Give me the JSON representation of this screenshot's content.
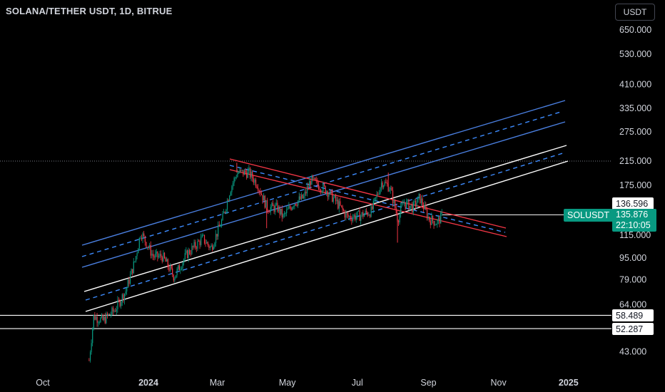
{
  "header": {
    "title": "SOLANA/TETHER USDT, 1D, BITRUE",
    "currency_button": "USDT"
  },
  "colors": {
    "background": "#000000",
    "candle_up": "#089981",
    "candle_down": "#f23645",
    "channel_blue": "#4a7fe0",
    "channel_blue_dashed": "#3d8bfd",
    "channel_white": "#ffffff",
    "channel_red": "#f23645",
    "current_price": "#089981"
  },
  "price_tags": {
    "upper_level": "136.596",
    "support_1": "58.489",
    "support_2": "52.287",
    "symbol": "SOLUSDT",
    "current_price": "135.876",
    "countdown": "22:10:05"
  },
  "chart_data": {
    "type": "candlestick",
    "title": "SOLANA/TETHER USDT, 1D, BITRUE",
    "y_scale": "log",
    "y_ticks": [
      "650.000",
      "530.000",
      "410.000",
      "335.000",
      "275.000",
      "215.000",
      "175.000",
      "115.000",
      "95.000",
      "79.000",
      "64.000",
      "43.000"
    ],
    "x_ticks": [
      {
        "label": "Oct",
        "date": "2023-10-01",
        "bold": false
      },
      {
        "label": "2024",
        "date": "2024-01-01",
        "bold": true
      },
      {
        "label": "Mar",
        "date": "2024-03-01",
        "bold": false
      },
      {
        "label": "May",
        "date": "2024-05-01",
        "bold": false
      },
      {
        "label": "Jul",
        "date": "2024-07-01",
        "bold": false
      },
      {
        "label": "Sep",
        "date": "2024-09-01",
        "bold": false
      },
      {
        "label": "Nov",
        "date": "2024-11-01",
        "bold": false
      },
      {
        "label": "2025",
        "date": "2025-01-01",
        "bold": true
      }
    ],
    "price_series": [
      {
        "date": "2023-11-10",
        "close": 40
      },
      {
        "date": "2023-11-14",
        "close": 58
      },
      {
        "date": "2023-11-22",
        "close": 56
      },
      {
        "date": "2023-12-02",
        "close": 61
      },
      {
        "date": "2023-12-12",
        "close": 72
      },
      {
        "date": "2023-12-20",
        "close": 93
      },
      {
        "date": "2023-12-25",
        "close": 118
      },
      {
        "date": "2024-01-05",
        "close": 96
      },
      {
        "date": "2024-01-13",
        "close": 96
      },
      {
        "date": "2024-01-23",
        "close": 81
      },
      {
        "date": "2024-02-03",
        "close": 98
      },
      {
        "date": "2024-02-17",
        "close": 112
      },
      {
        "date": "2024-02-24",
        "close": 103
      },
      {
        "date": "2024-03-05",
        "close": 131
      },
      {
        "date": "2024-03-12",
        "close": 170
      },
      {
        "date": "2024-03-18",
        "close": 195
      },
      {
        "date": "2024-03-28",
        "close": 195
      },
      {
        "date": "2024-04-05",
        "close": 176
      },
      {
        "date": "2024-04-13",
        "close": 145
      },
      {
        "date": "2024-04-22",
        "close": 145
      },
      {
        "date": "2024-04-27",
        "close": 134
      },
      {
        "date": "2024-05-06",
        "close": 151
      },
      {
        "date": "2024-05-15",
        "close": 158
      },
      {
        "date": "2024-05-21",
        "close": 183
      },
      {
        "date": "2024-06-04",
        "close": 168
      },
      {
        "date": "2024-06-13",
        "close": 151
      },
      {
        "date": "2024-06-22",
        "close": 134
      },
      {
        "date": "2024-07-04",
        "close": 136
      },
      {
        "date": "2024-07-13",
        "close": 141
      },
      {
        "date": "2024-07-22",
        "close": 181
      },
      {
        "date": "2024-07-29",
        "close": 172
      },
      {
        "date": "2024-08-05",
        "close": 132
      },
      {
        "date": "2024-08-10",
        "close": 152
      },
      {
        "date": "2024-08-18",
        "close": 145
      },
      {
        "date": "2024-08-24",
        "close": 158
      },
      {
        "date": "2024-09-01",
        "close": 132
      },
      {
        "date": "2024-09-08",
        "close": 128
      },
      {
        "date": "2024-09-13",
        "close": 135.876
      }
    ],
    "horizontal_levels": [
      136.596,
      58.489,
      52.287
    ],
    "dotted_level": 215,
    "current_price": 135.876
  }
}
